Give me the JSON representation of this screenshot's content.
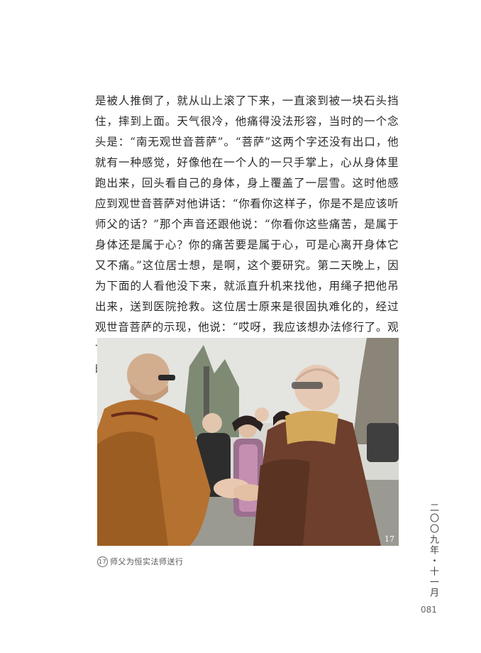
{
  "article": {
    "body": "是被人推倒了，就从山上滚了下来，一直滚到被一块石头挡住，摔到上面。天气很冷，他痛得没法形容，当时的一个念头是：“南无观世音菩萨”。“菩萨”这两个字还没有出口，他就有一种感觉，好像他在一个人的一只手掌上，心从身体里跑出来，回头看自己的身体，身上覆盖了一层雪。这时他感应到观世音菩萨对他讲话：“你看你这样子，你是不是应该听师父的话？”那个声音还跟他说：“你看你这些痛苦，是属于身体还是属于心？你的痛苦要是属于心，可是心离开身体它又不痛。”这位居士想，是啊，这个要研究。第二天晚上，因为下面的人看他没下来，就派直升机来找他，用绳子把他吊出来，送到医院抢救。这位居士原来是很固执难化的，经过观世音菩萨的示现，他说：“哎呀，我应该想办法修行了。观世音菩萨真的是大慈大悲，真的就伸出千手中的一只来救我的命了。”"
  },
  "photo": {
    "number": "17"
  },
  "caption": {
    "number": "17",
    "text": "师父为恒实法师送行"
  },
  "sidebar": {
    "issue_date": "二〇〇九年・十一月"
  },
  "page_number": "081"
}
